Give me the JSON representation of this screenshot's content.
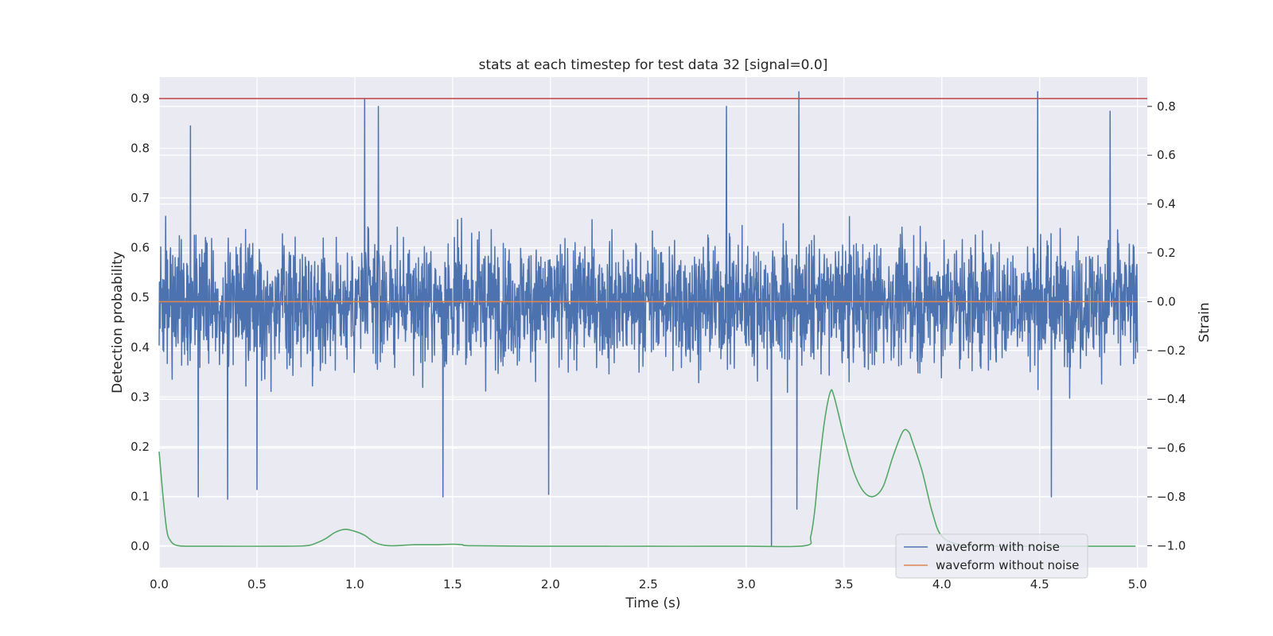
{
  "chart_data": {
    "type": "line",
    "title": "stats at each timestep for test data 32 [signal=0.0]",
    "xlabel": "Time (s)",
    "ylabel_left": "Detection probability",
    "ylabel_right": "Strain",
    "xlim": [
      0.0,
      5.05
    ],
    "ylim_left": [
      -0.043,
      0.943
    ],
    "ylim_right": [
      -1.09,
      0.92
    ],
    "x_ticks": [
      0.0,
      0.5,
      1.0,
      1.5,
      2.0,
      2.5,
      3.0,
      3.5,
      4.0,
      4.5,
      5.0
    ],
    "x_tick_labels": [
      "0.0",
      "0.5",
      "1.0",
      "1.5",
      "2.0",
      "2.5",
      "3.0",
      "3.5",
      "4.0",
      "4.5",
      "5.0"
    ],
    "y_left_ticks": [
      0.0,
      0.1,
      0.2,
      0.3,
      0.4,
      0.5,
      0.6,
      0.7,
      0.8,
      0.9
    ],
    "y_left_tick_labels": [
      "0.0",
      "0.1",
      "0.2",
      "0.3",
      "0.4",
      "0.5",
      "0.6",
      "0.7",
      "0.8",
      "0.9"
    ],
    "y_right_ticks": [
      -1.0,
      -0.8,
      -0.6,
      -0.4,
      -0.2,
      0.0,
      0.2,
      0.4,
      0.6,
      0.8
    ],
    "y_right_tick_labels": [
      "−1.0",
      "−0.8",
      "−0.6",
      "−0.4",
      "−0.2",
      "0.0",
      "0.2",
      "0.4",
      "0.6",
      "0.8"
    ],
    "grid": true,
    "legend_position": "lower-right",
    "threshold": {
      "axis": "left",
      "y": 0.9,
      "color": "#c44e52"
    },
    "series": [
      {
        "name": "waveform with noise",
        "axis": "right",
        "color": "#4c72b0",
        "kind": "noise",
        "x_range": [
          0.0,
          5.0
        ],
        "approx_std": 0.2,
        "extremes": [
          {
            "x": 0.35,
            "y": -0.81
          },
          {
            "x": 0.2,
            "y": -0.8
          },
          {
            "x": 0.5,
            "y": -0.77
          },
          {
            "x": 1.05,
            "y": 0.83
          },
          {
            "x": 1.12,
            "y": 0.8
          },
          {
            "x": 1.45,
            "y": -0.8
          },
          {
            "x": 1.99,
            "y": -0.79
          },
          {
            "x": 2.9,
            "y": 0.8
          },
          {
            "x": 3.13,
            "y": -1.0
          },
          {
            "x": 3.27,
            "y": 0.86
          },
          {
            "x": 3.26,
            "y": -0.85
          },
          {
            "x": 4.49,
            "y": 0.86
          },
          {
            "x": 4.56,
            "y": -0.8
          },
          {
            "x": 0.16,
            "y": 0.72
          },
          {
            "x": 4.86,
            "y": 0.78
          }
        ]
      },
      {
        "name": "waveform without noise",
        "axis": "right",
        "color": "#dd8452",
        "x": [
          0.0,
          5.0
        ],
        "y": [
          0.0,
          0.0
        ]
      },
      {
        "axis": "left",
        "color": "#55a868",
        "x": [
          0.0,
          0.02,
          0.04,
          0.06,
          0.08,
          0.1,
          0.15,
          0.3,
          0.6,
          0.75,
          0.8,
          0.85,
          0.9,
          0.95,
          1.0,
          1.05,
          1.1,
          1.15,
          1.2,
          1.3,
          1.4,
          1.5,
          1.55,
          1.6,
          2.0,
          2.5,
          3.0,
          3.3,
          3.33,
          3.35,
          3.37,
          3.4,
          3.43,
          3.45,
          3.5,
          3.55,
          3.6,
          3.65,
          3.7,
          3.75,
          3.8,
          3.83,
          3.85,
          3.9,
          3.95,
          4.0,
          4.1,
          4.2,
          4.5,
          4.99
        ],
        "y": [
          0.19,
          0.1,
          0.03,
          0.01,
          0.003,
          0.001,
          0.0,
          0.0,
          0.0,
          0.001,
          0.006,
          0.015,
          0.028,
          0.034,
          0.03,
          0.022,
          0.008,
          0.002,
          0.001,
          0.003,
          0.003,
          0.004,
          0.003,
          0.001,
          0.0,
          0.0,
          0.0,
          0.001,
          0.02,
          0.07,
          0.15,
          0.25,
          0.31,
          0.3,
          0.22,
          0.15,
          0.11,
          0.1,
          0.12,
          0.18,
          0.23,
          0.23,
          0.21,
          0.15,
          0.07,
          0.02,
          0.002,
          0.0,
          0.0,
          0.0
        ]
      }
    ]
  }
}
